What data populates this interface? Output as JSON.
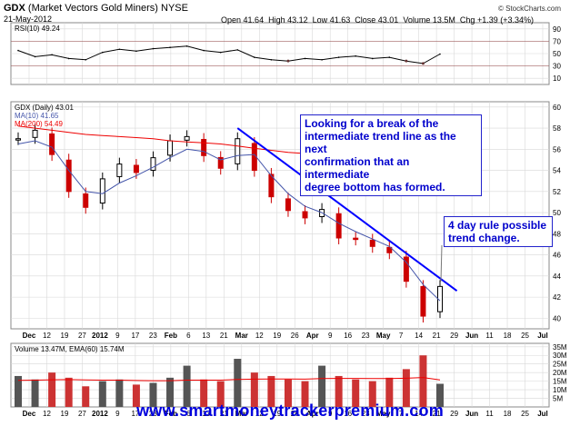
{
  "header": {
    "symbol": "GDX",
    "name": "(Market Vectors Gold Miners)",
    "exchange": "NYSE",
    "date": "21-May-2012",
    "open_label": "Open",
    "open": "41.64",
    "high_label": "High",
    "high": "43.12",
    "low_label": "Low",
    "low": "41.63",
    "close_label": "Close",
    "close": "43.01",
    "volume_label": "Volume",
    "volume": "13.5M",
    "chg_label": "Chg",
    "chg": "+1.39 (+3.34%)",
    "copyright": "© StockCharts.com"
  },
  "rsi_panel": {
    "label": "RSI(10) 49.24",
    "ticks": [
      "90",
      "70",
      "50",
      "30",
      "10"
    ]
  },
  "price_panel": {
    "label": "GDX (Daily) 43.01",
    "ma10_label": "MA(10) 41.65",
    "ma200_label": "MA(200) 54.49",
    "ticks": [
      "60",
      "58",
      "56",
      "54",
      "52",
      "50",
      "48",
      "46",
      "44",
      "42",
      "40"
    ]
  },
  "volume_panel": {
    "label": "Volume 13.47M, EMA(60) 15.74M",
    "ticks": [
      "35M",
      "30M",
      "25M",
      "20M",
      "15M",
      "10M",
      "5M"
    ]
  },
  "x_axis": {
    "labels": [
      "Dec",
      "12",
      "19",
      "27",
      "2012",
      "9",
      "17",
      "23",
      "Feb",
      "6",
      "13",
      "21",
      "Mar",
      "12",
      "19",
      "26",
      "Apr",
      "9",
      "16",
      "23",
      "May",
      "7",
      "14",
      "21",
      "29",
      "Jun",
      "11",
      "18",
      "25",
      "Jul"
    ]
  },
  "annotations": {
    "trendline_note": [
      "Looking for a break of the",
      "intermediate trend line as the next",
      "confirmation that an intermediate",
      "degree bottom has formed."
    ],
    "four_day_note": [
      "4 day rule possible",
      "trend change."
    ]
  },
  "website": "www.smartmoneytrackerpremium.com",
  "colors": {
    "up_candle": "#000000",
    "down_candle": "#cc0000",
    "ma10": "#4455aa",
    "ma200": "#ee0000",
    "trendline": "#0000ff",
    "panel_bg": "#ffffff",
    "grid": "#d8d8d8"
  },
  "chart_data": [
    {
      "type": "line",
      "name": "RSI(10)",
      "ylim": [
        0,
        100
      ],
      "bands": [
        30,
        70
      ],
      "x": [
        "Nov 28",
        "Dec 5",
        "Dec 12",
        "Dec 19",
        "Dec 27",
        "Jan 3",
        "Jan 9",
        "Jan 17",
        "Jan 23",
        "Feb 1",
        "Feb 6",
        "Feb 13",
        "Feb 21",
        "Feb 29",
        "Mar 5",
        "Mar 12",
        "Mar 19",
        "Mar 26",
        "Apr 2",
        "Apr 9",
        "Apr 16",
        "Apr 23",
        "May 1",
        "May 7",
        "May 14",
        "May 21"
      ],
      "values": [
        55,
        45,
        48,
        42,
        40,
        52,
        57,
        54,
        58,
        60,
        62,
        55,
        52,
        56,
        44,
        40,
        38,
        42,
        40,
        44,
        46,
        42,
        44,
        38,
        34,
        49.24
      ]
    },
    {
      "type": "line",
      "name": "GDX (Daily)",
      "ylim": [
        39,
        60.5
      ],
      "x": [
        "Nov 28",
        "Dec 5",
        "Dec 12",
        "Dec 19",
        "Dec 27",
        "Jan 3",
        "Jan 9",
        "Jan 17",
        "Jan 23",
        "Feb 1",
        "Feb 6",
        "Feb 13",
        "Feb 21",
        "Feb 29",
        "Mar 5",
        "Mar 12",
        "Mar 19",
        "Mar 26",
        "Apr 2",
        "Apr 9",
        "Apr 16",
        "Apr 23",
        "May 1",
        "May 7",
        "May 14",
        "May 21"
      ],
      "close": [
        57.0,
        57.8,
        55.5,
        52.0,
        50.5,
        53.2,
        54.6,
        53.8,
        55.2,
        56.8,
        57.2,
        55.4,
        54.2,
        57.0,
        54.0,
        51.5,
        50.2,
        49.5,
        50.3,
        47.6,
        47.5,
        46.8,
        46.2,
        43.5,
        40.2,
        43.01
      ],
      "ma10": [
        56.5,
        56.8,
        56.2,
        54.0,
        52.0,
        51.8,
        52.8,
        53.5,
        54.3,
        55.2,
        56.0,
        55.8,
        55.0,
        55.4,
        55.5,
        53.5,
        51.8,
        50.6,
        50.0,
        49.0,
        48.2,
        47.5,
        46.8,
        45.3,
        43.2,
        41.65
      ],
      "ma200": [
        58.2,
        58.0,
        57.8,
        57.6,
        57.4,
        57.3,
        57.2,
        57.1,
        57.0,
        56.8,
        56.7,
        56.6,
        56.5,
        56.3,
        56.1,
        55.9,
        55.7,
        55.6,
        55.5,
        55.3,
        55.2,
        55.0,
        54.9,
        54.8,
        54.6,
        54.49
      ],
      "trendline": {
        "from": [
          "Feb 29",
          58.0
        ],
        "to": [
          "May 28",
          42.6
        ]
      }
    },
    {
      "type": "bar",
      "name": "Volume",
      "unit": "M",
      "ylim": [
        0,
        37
      ],
      "x": [
        "Nov 28",
        "Dec 5",
        "Dec 12",
        "Dec 19",
        "Dec 27",
        "Jan 3",
        "Jan 9",
        "Jan 17",
        "Jan 23",
        "Feb 1",
        "Feb 6",
        "Feb 13",
        "Feb 21",
        "Feb 29",
        "Mar 5",
        "Mar 12",
        "Mar 19",
        "Mar 26",
        "Apr 2",
        "Apr 9",
        "Apr 16",
        "Apr 23",
        "May 1",
        "May 7",
        "May 14",
        "May 21"
      ],
      "values": [
        18,
        16,
        20,
        17,
        12,
        15,
        16,
        13,
        14,
        17,
        24,
        16,
        15,
        28,
        20,
        18,
        16,
        15,
        24,
        18,
        16,
        15,
        17,
        22,
        30,
        13.47
      ],
      "ema60": [
        15.5,
        15.6,
        15.8,
        15.9,
        15.7,
        15.6,
        15.6,
        15.4,
        15.3,
        15.3,
        15.6,
        15.6,
        15.6,
        16.0,
        16.2,
        16.3,
        16.3,
        16.2,
        16.5,
        16.6,
        16.6,
        16.5,
        16.5,
        16.7,
        17.1,
        15.74
      ]
    }
  ]
}
